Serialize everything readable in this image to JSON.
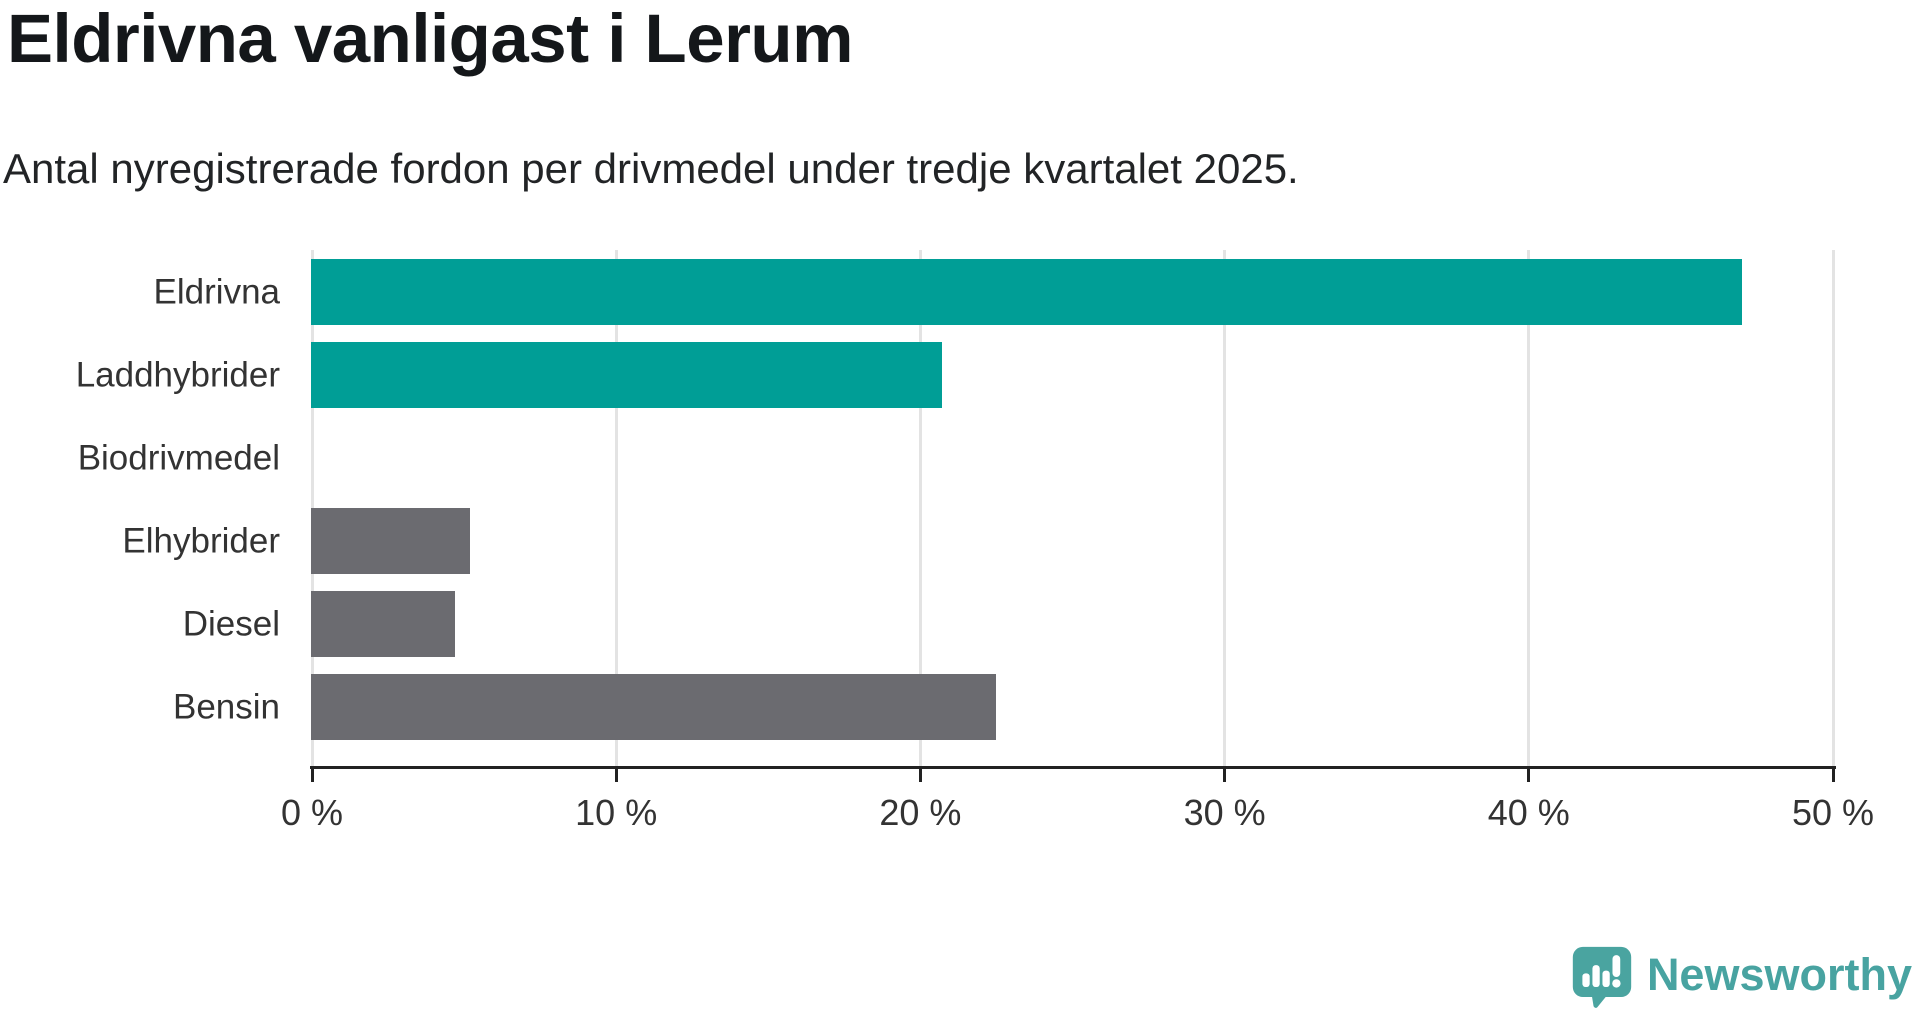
{
  "page": {
    "title": "Eldrivna vanligast i Lerum",
    "subtitle": "Antal nyregistrerade fordon per drivmedel under tredje kvartalet 2025."
  },
  "chart_data": {
    "type": "bar",
    "orientation": "horizontal",
    "title": "Eldrivna vanligast i Lerum",
    "subtitle": "Antal nyregistrerade fordon per drivmedel under tredje kvartalet 2025.",
    "categories": [
      "Eldrivna",
      "Laddhybrider",
      "Biodrivmedel",
      "Elhybrider",
      "Diesel",
      "Bensin"
    ],
    "values": [
      47.0,
      20.7,
      0,
      5.2,
      4.7,
      22.5
    ],
    "bar_colors": [
      "#009e96",
      "#009e96",
      "#6b6b70",
      "#6b6b70",
      "#6b6b70",
      "#6b6b70"
    ],
    "unit": "%",
    "xlim": [
      0,
      50
    ],
    "x_ticks": [
      0,
      10,
      20,
      30,
      40,
      50
    ],
    "x_tick_labels": [
      "0 %",
      "10 %",
      "20 %",
      "30 %",
      "40 %",
      "50 %"
    ],
    "grid": true,
    "gridline_color": "#e3e3e3",
    "axis_color": "#222222",
    "highlight_color": "#009e96",
    "default_color": "#6b6b70",
    "legend": "none"
  },
  "branding": {
    "logo_text": "Newsworthy",
    "logo_color": "#48a3a1",
    "logo_icon": "newsworthy-speech-bubble-chart-icon"
  }
}
